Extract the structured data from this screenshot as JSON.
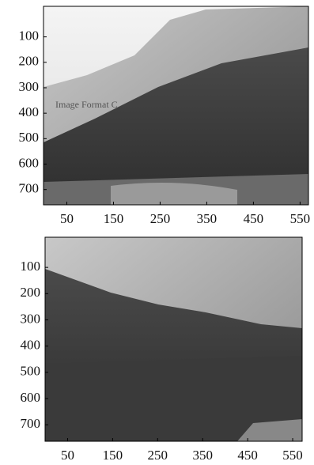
{
  "chart_data": [
    {
      "type": "image",
      "annotation": "Image Format C",
      "xlim": [
        0,
        568
      ],
      "ylim": [
        -20,
        760
      ],
      "y_reversed": true,
      "xticks": [
        50,
        150,
        250,
        350,
        450,
        550
      ],
      "yticks": [
        100,
        200,
        300,
        400,
        500,
        600,
        700
      ]
    },
    {
      "type": "image",
      "xlim": [
        0,
        571
      ],
      "ylim": [
        -15,
        763
      ],
      "y_reversed": true,
      "xticks": [
        50,
        150,
        250,
        350,
        450,
        550
      ],
      "yticks": [
        100,
        200,
        300,
        400,
        500,
        600,
        700
      ]
    }
  ]
}
